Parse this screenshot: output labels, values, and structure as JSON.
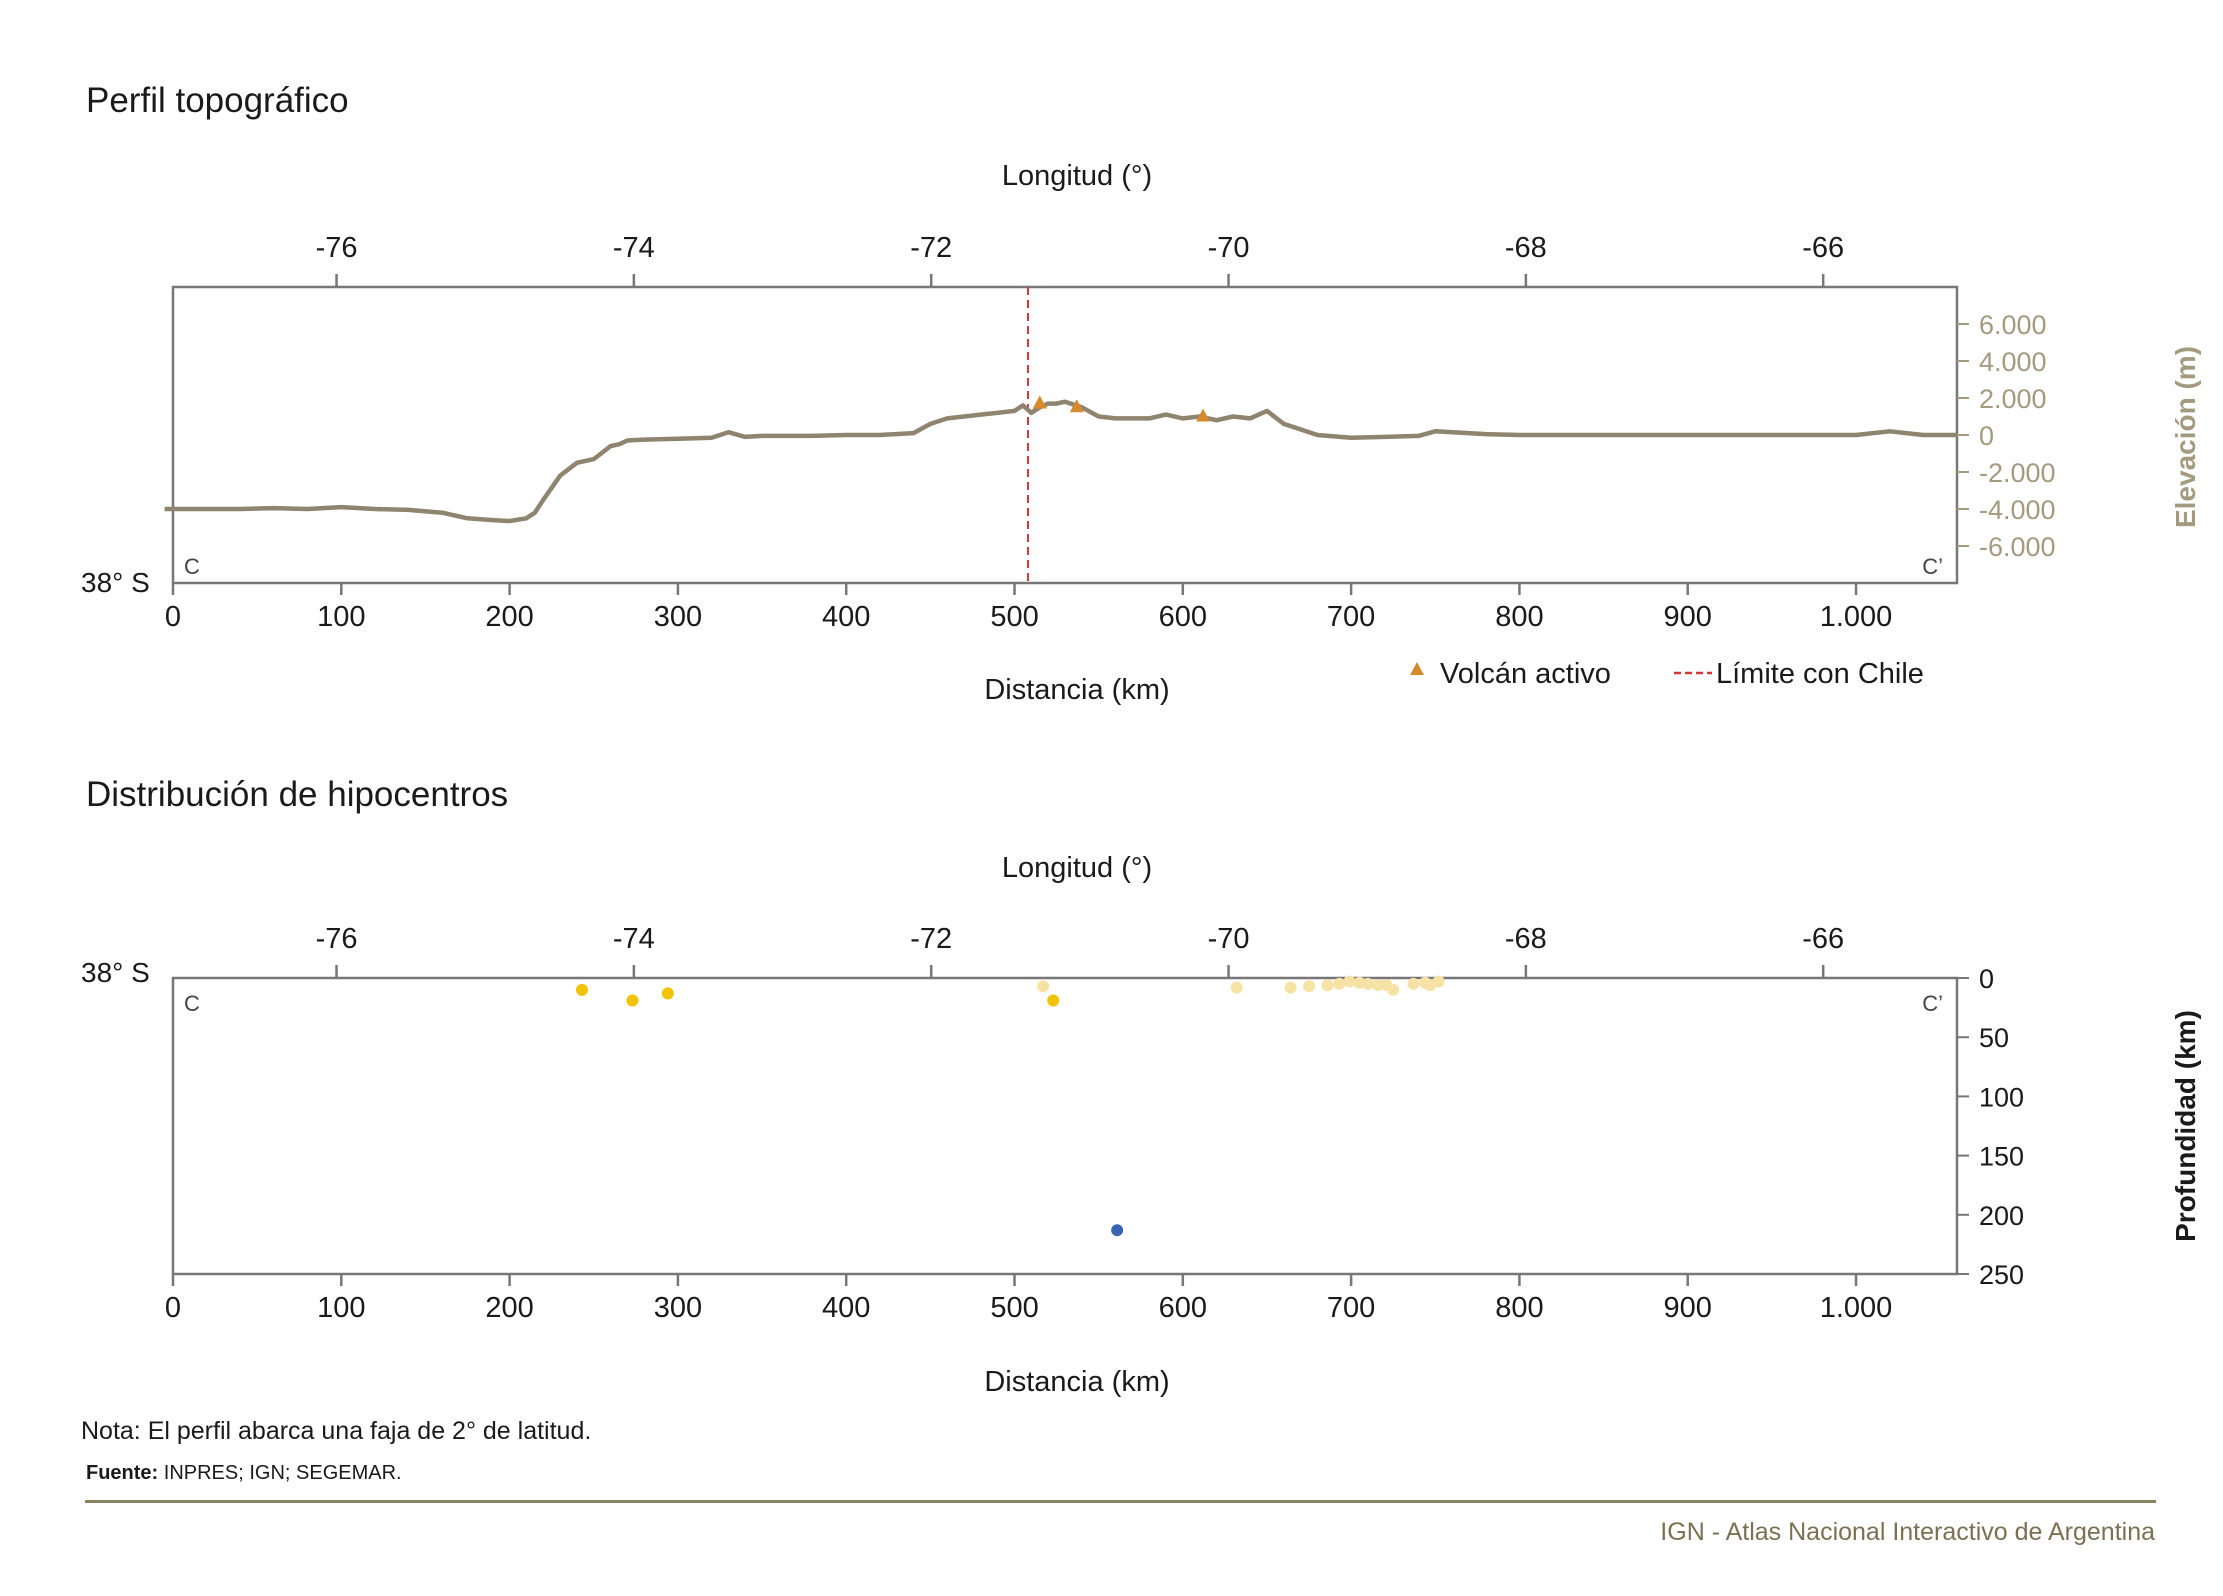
{
  "colors": {
    "text": "#1a1a1a",
    "axis": "#777777",
    "profile_line": "#8e8470",
    "elevation_axis": "#a39a80",
    "volcano": "#d68a2e",
    "chile_border": "#d13838",
    "footer_rule": "#8b8062",
    "footer_text": "#7b7152",
    "hypo_shallow_strong": "#f2c300",
    "hypo_shallow_light": "#f7e2a6",
    "hypo_deep": "#3a64b3"
  },
  "chart_data": [
    {
      "type": "line",
      "title": "Perfil topográfico",
      "top_axis": {
        "label": "Longitud (°)",
        "ticks": [
          -76,
          -74,
          -72,
          -70,
          -68,
          -66
        ],
        "tick_labels": [
          "-76",
          "-74",
          "-72",
          "-70",
          "-68",
          "-66"
        ],
        "range": [
          -77.1,
          -65.1
        ]
      },
      "xlabel": "Distancia (km)",
      "xlim": [
        0,
        1060
      ],
      "x_ticks": [
        0,
        100,
        200,
        300,
        400,
        500,
        600,
        700,
        800,
        900,
        1000
      ],
      "x_tick_labels": [
        "0",
        "100",
        "200",
        "300",
        "400",
        "500",
        "600",
        "700",
        "800",
        "900",
        "1.000"
      ],
      "ylabel": "Elevación (m)",
      "ylim": [
        -8000,
        8000
      ],
      "y_ticks": [
        6000,
        4000,
        2000,
        0,
        -2000,
        -4000,
        -6000
      ],
      "y_tick_labels": [
        "6.000",
        "4.000",
        "2.000",
        "0",
        "-2.000",
        "-4.000",
        "-6.000"
      ],
      "latitude_label": "38° S",
      "start_label": "C",
      "end_label": "C’",
      "series": [
        {
          "name": "Elevación",
          "x": [
            -5,
            20,
            40,
            60,
            80,
            100,
            120,
            140,
            160,
            175,
            190,
            200,
            210,
            215,
            220,
            230,
            240,
            250,
            260,
            265,
            270,
            280,
            300,
            320,
            330,
            340,
            350,
            380,
            400,
            420,
            440,
            450,
            460,
            470,
            480,
            490,
            500,
            505,
            510,
            515,
            520,
            525,
            530,
            540,
            550,
            560,
            580,
            590,
            600,
            610,
            620,
            630,
            640,
            650,
            660,
            680,
            700,
            720,
            740,
            750,
            780,
            800,
            850,
            900,
            950,
            1000,
            1020,
            1040,
            1060
          ],
          "y": [
            -4000,
            -4000,
            -4000,
            -3950,
            -4000,
            -3900,
            -4000,
            -4050,
            -4200,
            -4500,
            -4600,
            -4650,
            -4500,
            -4200,
            -3500,
            -2200,
            -1500,
            -1300,
            -600,
            -500,
            -300,
            -250,
            -200,
            -150,
            150,
            -100,
            -50,
            -50,
            0,
            0,
            100,
            600,
            900,
            1000,
            1100,
            1200,
            1300,
            1600,
            1200,
            1500,
            1700,
            1700,
            1800,
            1500,
            1000,
            900,
            900,
            1100,
            900,
            1000,
            800,
            1000,
            900,
            1300,
            600,
            0,
            -150,
            -100,
            -50,
            200,
            50,
            0,
            0,
            0,
            0,
            0,
            200,
            0,
            0
          ]
        }
      ],
      "volcanoes": {
        "name": "Volcán activo",
        "x": [
          515,
          537,
          612
        ],
        "y": [
          1700,
          1500,
          1000
        ]
      },
      "chile_border": {
        "name": "Límite con Chile",
        "x": 508
      },
      "legend": [
        {
          "marker": "triangle",
          "label": "Volcán activo"
        },
        {
          "marker": "dash",
          "label": "Límite con Chile"
        }
      ],
      "legend_position": "bottom-right",
      "grid": false
    },
    {
      "type": "scatter",
      "title": "Distribución de hipocentros",
      "top_axis": {
        "label": "Longitud (°)",
        "ticks": [
          -76,
          -74,
          -72,
          -70,
          -68,
          -66
        ],
        "tick_labels": [
          "-76",
          "-74",
          "-72",
          "-70",
          "-68",
          "-66"
        ],
        "range": [
          -77.1,
          -65.1
        ]
      },
      "xlabel": "Distancia (km)",
      "xlim": [
        0,
        1060
      ],
      "x_ticks": [
        0,
        100,
        200,
        300,
        400,
        500,
        600,
        700,
        800,
        900,
        1000
      ],
      "x_tick_labels": [
        "0",
        "100",
        "200",
        "300",
        "400",
        "500",
        "600",
        "700",
        "800",
        "900",
        "1.000"
      ],
      "ylabel": "Profundidad (km)",
      "ylim": [
        0,
        250
      ],
      "y_inverted": true,
      "y_ticks": [
        0,
        50,
        100,
        150,
        200,
        250
      ],
      "y_tick_labels": [
        "0",
        "50",
        "100",
        "150",
        "200",
        "250"
      ],
      "latitude_label": "38° S",
      "start_label": "C",
      "end_label": "C’",
      "points": [
        {
          "x": 243,
          "y": 10,
          "color": "#f2c300"
        },
        {
          "x": 273,
          "y": 19,
          "color": "#f2c300"
        },
        {
          "x": 294,
          "y": 13,
          "color": "#f2c300"
        },
        {
          "x": 517,
          "y": 7,
          "color": "#f7e2a6"
        },
        {
          "x": 523,
          "y": 19,
          "color": "#f2c300"
        },
        {
          "x": 561,
          "y": 213,
          "color": "#3a64b3"
        },
        {
          "x": 632,
          "y": 8,
          "color": "#f7e2a6"
        },
        {
          "x": 664,
          "y": 8,
          "color": "#f7e2a6"
        },
        {
          "x": 675,
          "y": 7,
          "color": "#f7e2a6"
        },
        {
          "x": 686,
          "y": 6,
          "color": "#f7e2a6"
        },
        {
          "x": 693,
          "y": 5,
          "color": "#f7e2a6"
        },
        {
          "x": 699,
          "y": 3,
          "color": "#f7e2a6"
        },
        {
          "x": 705,
          "y": 4,
          "color": "#f7e2a6"
        },
        {
          "x": 710,
          "y": 5,
          "color": "#f7e2a6"
        },
        {
          "x": 716,
          "y": 6,
          "color": "#f7e2a6"
        },
        {
          "x": 721,
          "y": 6,
          "color": "#f7e2a6"
        },
        {
          "x": 725,
          "y": 10,
          "color": "#f7e2a6"
        },
        {
          "x": 737,
          "y": 5,
          "color": "#f7e2a6"
        },
        {
          "x": 744,
          "y": 4,
          "color": "#f7e2a6"
        },
        {
          "x": 747,
          "y": 6,
          "color": "#f7e2a6"
        },
        {
          "x": 752,
          "y": 3,
          "color": "#f7e2a6"
        }
      ],
      "grid": false
    }
  ],
  "notes": {
    "nota": "Nota: El perfil abarca una faja de 2° de latitud.",
    "fuente_label": "Fuente:",
    "fuente_text": " INPRES; IGN; SEGEMAR."
  },
  "footer": {
    "credit": "IGN - Atlas Nacional Interactivo de Argentina"
  }
}
